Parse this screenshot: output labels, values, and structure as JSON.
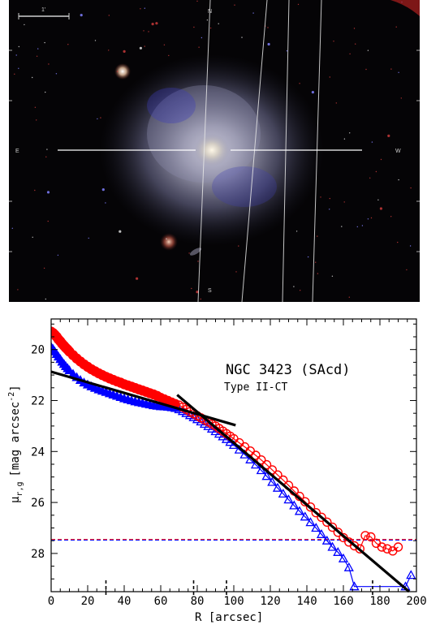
{
  "image_panel": {
    "scale_label": "1'",
    "compass": {
      "north": "N",
      "east": "E",
      "west": "W",
      "south": "S"
    }
  },
  "chart_data": {
    "type": "scatter",
    "title": "NGC 3423 (SAcd)",
    "subtitle": "Type II-CT",
    "xlabel": "R [arcsec]",
    "ylabel_main": "μ",
    "ylabel_sub": "r,g",
    "ylabel_rest": "[mag arcsec",
    "ylabel_exp": "-2",
    "ylabel_close": "]",
    "xlim": [
      0,
      200
    ],
    "ylim": [
      29.5,
      18.8
    ],
    "x_ticks": [
      0,
      20,
      40,
      60,
      80,
      100,
      120,
      140,
      160,
      180,
      200
    ],
    "y_ticks": [
      20,
      22,
      24,
      26,
      28
    ],
    "series": [
      {
        "color": "#ff0000",
        "marker": "circle",
        "x": [
          0,
          1,
          2,
          3,
          4,
          5,
          6,
          7,
          8,
          9,
          10,
          12,
          14,
          16,
          18,
          20,
          22,
          24,
          26,
          28,
          30,
          32,
          34,
          36,
          38,
          40,
          42,
          44,
          46,
          48,
          50,
          52,
          54,
          56,
          58,
          60,
          62,
          64,
          66,
          68,
          70,
          72,
          74,
          76,
          78,
          80,
          82,
          84,
          86,
          88,
          90,
          92,
          94,
          96,
          98,
          100,
          103,
          106,
          109,
          112,
          115,
          118,
          121,
          124,
          127,
          130,
          133,
          136,
          139,
          142,
          145,
          148,
          151,
          154,
          157,
          160,
          163,
          166,
          169,
          172,
          175,
          178,
          181,
          184,
          187,
          190
        ],
        "y": [
          19.3,
          19.35,
          19.42,
          19.5,
          19.6,
          19.68,
          19.77,
          19.85,
          19.93,
          20.0,
          20.08,
          20.22,
          20.35,
          20.47,
          20.58,
          20.68,
          20.77,
          20.85,
          20.93,
          21.0,
          21.07,
          21.13,
          21.19,
          21.25,
          21.3,
          21.36,
          21.41,
          21.46,
          21.51,
          21.56,
          21.61,
          21.66,
          21.71,
          21.76,
          21.82,
          21.88,
          21.94,
          22.0,
          22.06,
          22.12,
          22.18,
          22.26,
          22.35,
          22.44,
          22.52,
          22.6,
          22.68,
          22.76,
          22.84,
          22.92,
          23.0,
          23.1,
          23.2,
          23.3,
          23.4,
          23.5,
          23.66,
          23.82,
          23.98,
          24.15,
          24.33,
          24.52,
          24.72,
          24.92,
          25.12,
          25.33,
          25.55,
          25.76,
          25.97,
          26.18,
          26.4,
          26.58,
          26.77,
          26.97,
          27.17,
          27.38,
          27.55,
          27.7,
          27.82,
          27.3,
          27.35,
          27.6,
          27.75,
          27.82,
          27.9,
          27.75
        ]
      },
      {
        "color": "#0000ff",
        "marker": "triangle",
        "x": [
          0,
          1,
          2,
          3,
          4,
          5,
          6,
          7,
          8,
          9,
          10,
          12,
          14,
          16,
          18,
          20,
          22,
          24,
          26,
          28,
          30,
          32,
          34,
          36,
          38,
          40,
          42,
          44,
          46,
          48,
          50,
          52,
          54,
          56,
          58,
          60,
          62,
          64,
          66,
          68,
          70,
          72,
          74,
          76,
          78,
          80,
          82,
          84,
          86,
          88,
          90,
          92,
          94,
          96,
          98,
          100,
          103,
          106,
          109,
          112,
          115,
          118,
          121,
          124,
          127,
          130,
          133,
          136,
          139,
          142,
          145,
          148,
          151,
          154,
          157,
          160,
          163,
          166,
          194,
          197
        ],
        "y": [
          19.9,
          19.98,
          20.08,
          20.18,
          20.28,
          20.38,
          20.48,
          20.57,
          20.66,
          20.74,
          20.82,
          20.96,
          21.09,
          21.2,
          21.3,
          21.38,
          21.45,
          21.51,
          21.57,
          21.62,
          21.67,
          21.72,
          21.77,
          21.82,
          21.87,
          21.92,
          21.96,
          22.0,
          22.04,
          22.07,
          22.1,
          22.13,
          22.16,
          22.19,
          22.21,
          22.23,
          22.24,
          22.25,
          22.27,
          22.3,
          22.35,
          22.42,
          22.5,
          22.58,
          22.66,
          22.74,
          22.83,
          22.92,
          23.01,
          23.11,
          23.21,
          23.31,
          23.41,
          23.52,
          23.63,
          23.75,
          23.93,
          24.12,
          24.32,
          24.52,
          24.74,
          24.97,
          25.2,
          25.43,
          25.66,
          25.89,
          26.12,
          26.34,
          26.56,
          26.78,
          27.0,
          27.25,
          27.5,
          27.75,
          27.95,
          28.2,
          28.55,
          29.3,
          29.3,
          28.85
        ]
      }
    ],
    "fits": [
      {
        "x": [
          0,
          101
        ],
        "y": [
          20.87,
          22.97
        ]
      },
      {
        "x": [
          69,
          196
        ],
        "y": [
          21.78,
          29.5
        ]
      }
    ],
    "limit_lines": [
      {
        "y": 27.45,
        "color": "#ff0000"
      },
      {
        "y": 27.48,
        "color": "#0000ff"
      }
    ],
    "break_markers": [
      30,
      78,
      96,
      176
    ]
  }
}
